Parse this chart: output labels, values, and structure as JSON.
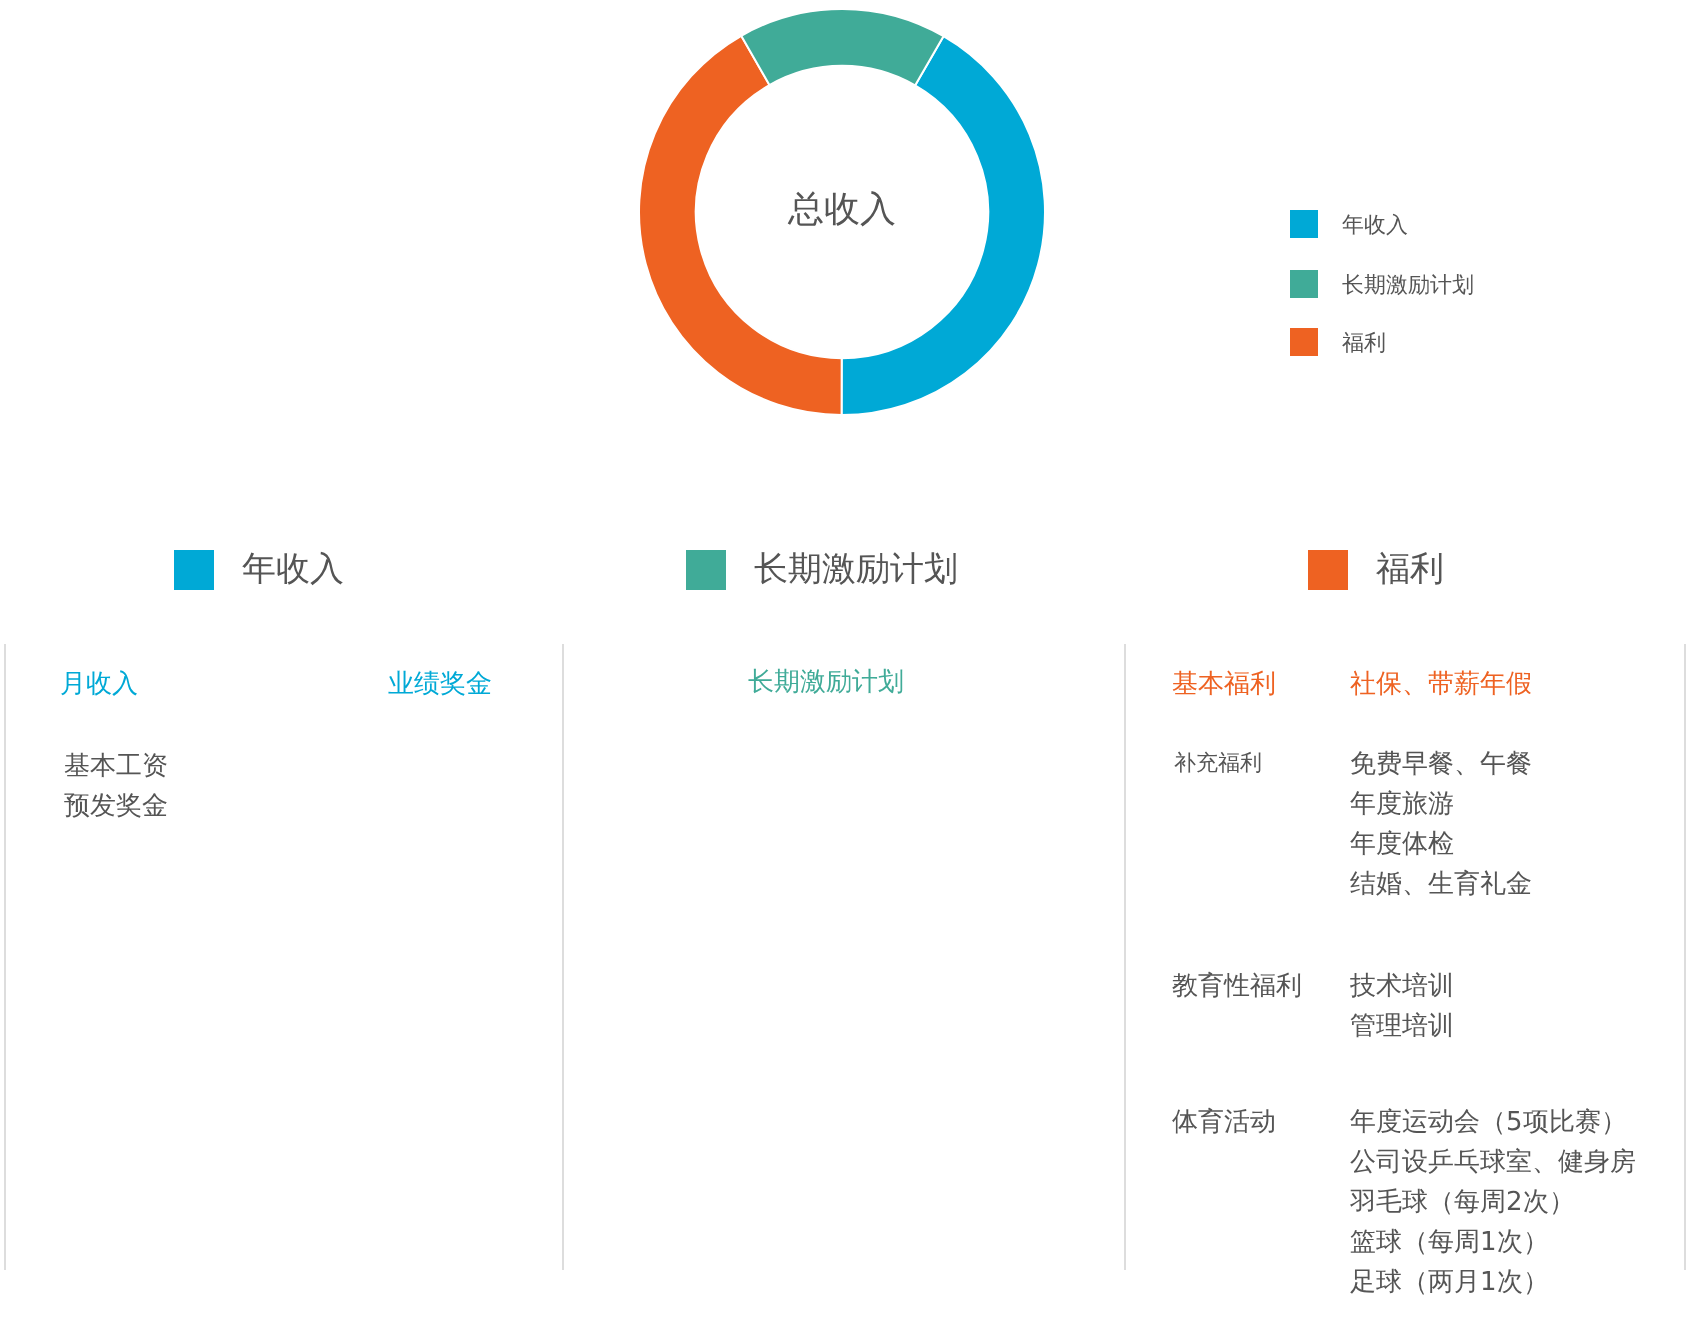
{
  "chart_data": {
    "type": "donut",
    "categories": [
      "年收入",
      "福利",
      "长期激励计划"
    ],
    "values": [
      41.7,
      41.7,
      16.6
    ],
    "colors": [
      "#00a9d6",
      "#ee6222",
      "#40ab98"
    ],
    "legend": "right",
    "annotations": [
      "总收入",
      "月收入",
      "业绩奖金",
      "基本工资",
      "预发奖金",
      "长期激励计划",
      "基本福利",
      "社保、带薪年假",
      "补充福利",
      "免费早餐、午餐",
      "年度旅游",
      "年度体检",
      "结婚、生育礼金",
      "教育性福利",
      "技术培训",
      "管理培训",
      "体育活动",
      "年度运动会（5项比赛）",
      "公司设乒乓球室、健身房",
      "羽毛球（每周2次）",
      "篮球（每周1次）",
      "足球（两月1次）"
    ]
  }
}
